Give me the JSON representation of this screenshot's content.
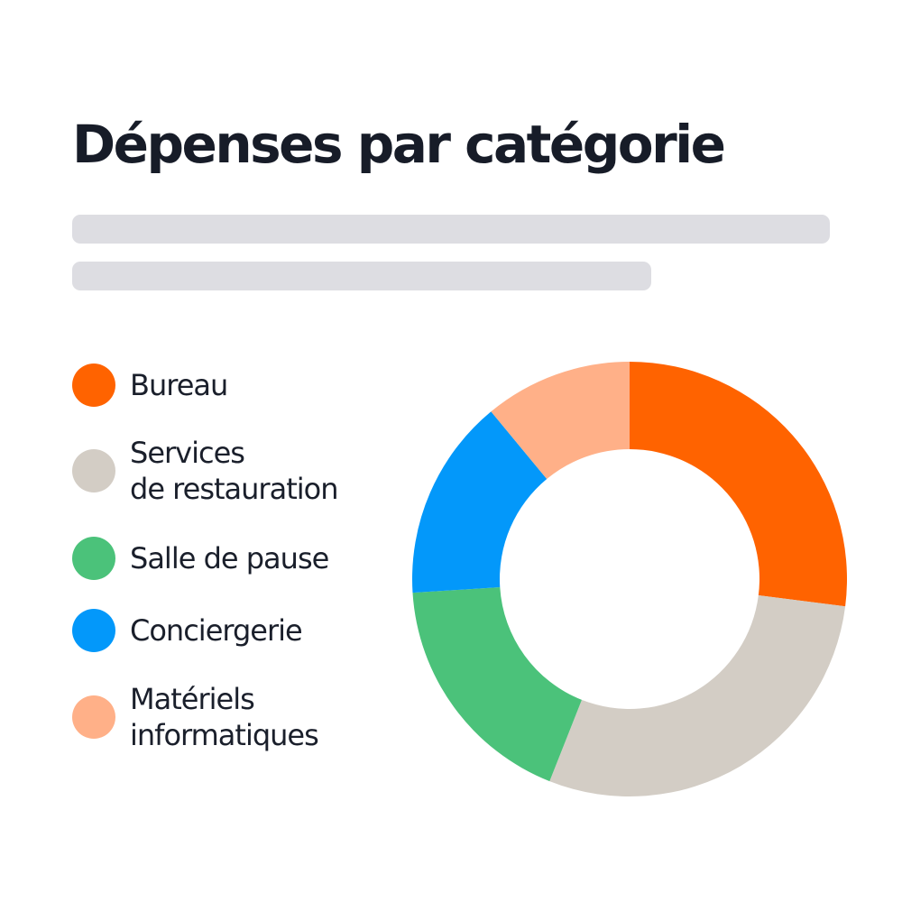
{
  "chart_data": {
    "type": "pie",
    "title": "Dépenses par catégorie",
    "categories": [
      "Bureau",
      "Services\nde restauration",
      "Salle de pause",
      "Conciergerie",
      "Matériels\ninformatiques"
    ],
    "values": [
      27,
      29,
      18,
      15,
      11
    ],
    "colors": [
      "#ff6300",
      "#d3cdc5",
      "#4bc27a",
      "#0398fa",
      "#ffb088"
    ],
    "donut": true,
    "legend_position": "left"
  }
}
